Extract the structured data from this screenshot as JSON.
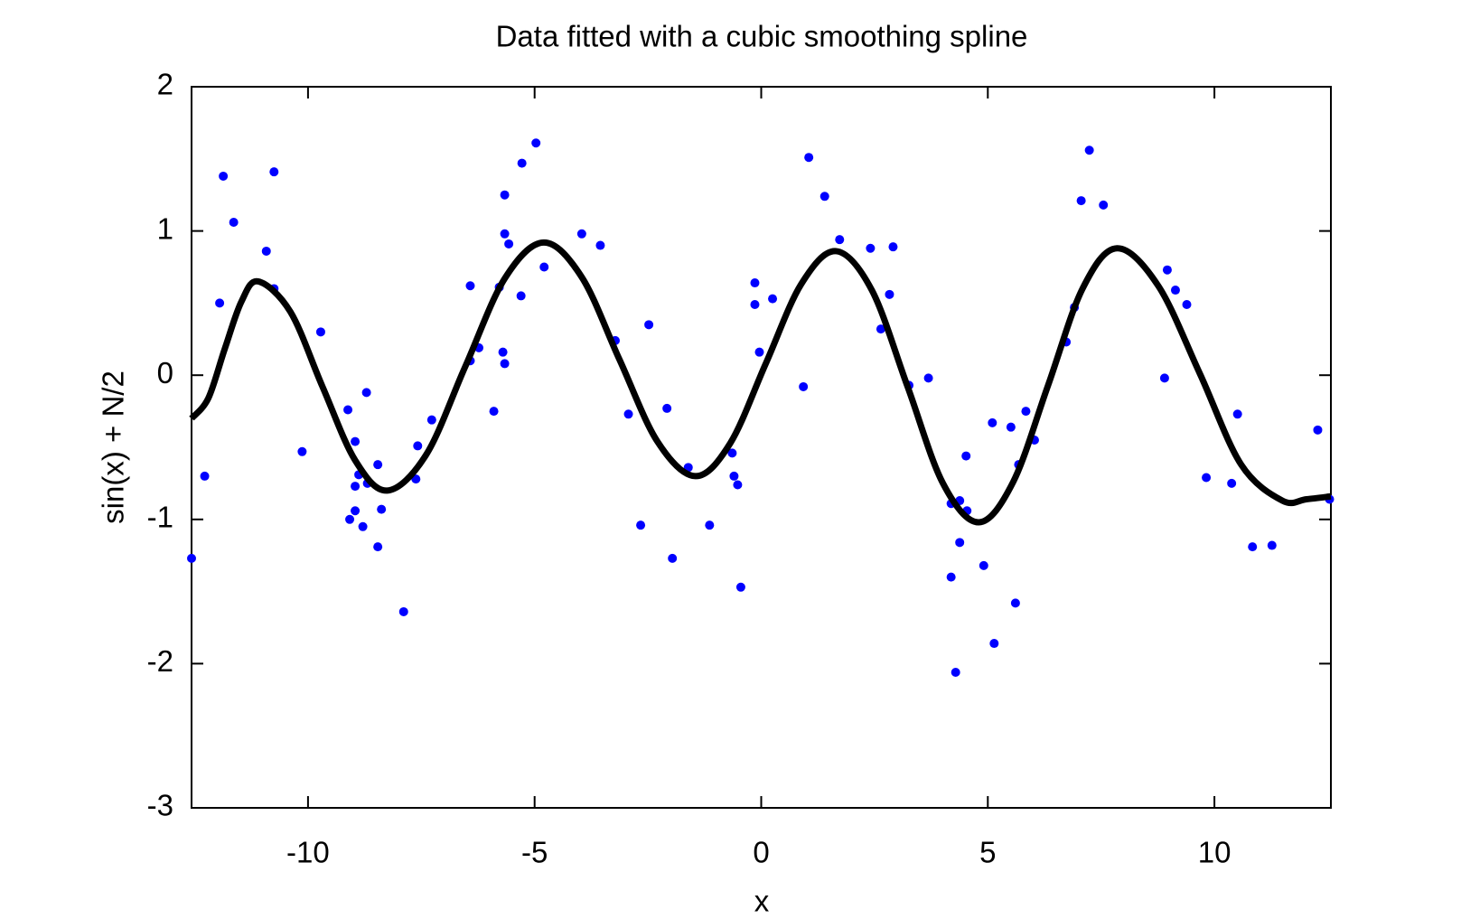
{
  "chart_data": {
    "type": "scatter",
    "title": "Data fitted with a cubic smoothing spline",
    "x_label": "x",
    "y_label": "sin(x) + N/2",
    "xlim": [
      -12.57,
      12.57
    ],
    "ylim": [
      -3,
      2
    ],
    "xticks": [
      -10,
      -5,
      0,
      5,
      10
    ],
    "yticks": [
      -3,
      -2,
      -1,
      0,
      1,
      2
    ],
    "grid": false,
    "series": [
      {
        "type": "scatter",
        "color": "#0000ff",
        "x": [
          -12.57,
          -12.28,
          -11.95,
          -11.87,
          -11.64,
          -10.92,
          -10.75,
          -10.75,
          -10.13,
          -9.72,
          -9.12,
          -9.08,
          -8.96,
          -8.96,
          -8.96,
          -8.88,
          -8.79,
          -8.71,
          -8.69,
          -8.46,
          -8.46,
          -8.38,
          -7.89,
          -7.62,
          -7.58,
          -7.27,
          -6.42,
          -6.42,
          -6.23,
          -5.9,
          -5.78,
          -5.7,
          -5.66,
          -5.66,
          -5.66,
          -5.57,
          -5.3,
          -5.28,
          -4.97,
          -4.79,
          -3.96,
          -3.55,
          -3.22,
          -2.93,
          -2.66,
          -2.48,
          -2.08,
          -1.96,
          -1.61,
          -1.14,
          -0.64,
          -0.6,
          -0.52,
          -0.45,
          -0.14,
          -0.14,
          -0.04,
          0.25,
          0.93,
          1.05,
          1.4,
          1.73,
          2.41,
          2.64,
          2.83,
          2.91,
          3.26,
          3.69,
          4.19,
          4.19,
          4.29,
          4.38,
          4.38,
          4.52,
          4.54,
          4.91,
          5.1,
          5.14,
          5.51,
          5.61,
          5.68,
          5.84,
          6.03,
          6.73,
          6.91,
          7.06,
          7.24,
          7.55,
          8.9,
          8.96,
          9.14,
          9.39,
          9.82,
          10.38,
          10.51,
          10.84,
          11.27,
          12.28,
          12.54
        ],
        "values": [
          -1.27,
          -0.7,
          0.5,
          1.38,
          1.06,
          0.86,
          0.6,
          1.41,
          -0.53,
          0.3,
          -0.24,
          -1.0,
          -0.46,
          -0.77,
          -0.94,
          -0.69,
          -1.05,
          -0.12,
          -0.75,
          -0.62,
          -1.19,
          -0.93,
          -1.64,
          -0.72,
          -0.49,
          -0.31,
          0.1,
          0.62,
          0.19,
          -0.25,
          0.61,
          0.16,
          0.98,
          1.25,
          0.08,
          0.91,
          0.55,
          1.47,
          1.61,
          0.75,
          0.98,
          0.9,
          0.24,
          -0.27,
          -1.04,
          0.35,
          -0.23,
          -1.27,
          -0.64,
          -1.04,
          -0.54,
          -0.7,
          -0.76,
          -1.47,
          0.64,
          0.49,
          0.16,
          0.53,
          -0.08,
          1.51,
          1.24,
          0.94,
          0.88,
          0.32,
          0.56,
          0.89,
          -0.07,
          -0.02,
          -0.89,
          -1.4,
          -2.06,
          -0.87,
          -1.16,
          -0.56,
          -0.94,
          -1.32,
          -0.33,
          -1.86,
          -0.36,
          -1.58,
          -0.62,
          -0.25,
          -0.45,
          0.23,
          0.47,
          1.21,
          1.56,
          1.18,
          -0.02,
          0.73,
          0.59,
          0.49,
          -0.71,
          -0.75,
          -0.27,
          -1.19,
          -1.18,
          -0.38,
          -0.86
        ]
      },
      {
        "type": "line",
        "color": "#000000",
        "x": [
          -12.57,
          -12.2,
          -11.84,
          -11.47,
          -11.1,
          -10.39,
          -9.68,
          -8.96,
          -8.25,
          -7.39,
          -6.53,
          -5.66,
          -4.8,
          -3.96,
          -3.13,
          -2.29,
          -1.45,
          -0.68,
          0.1,
          0.88,
          1.65,
          2.44,
          3.23,
          4.01,
          4.8,
          5.56,
          6.33,
          7.09,
          7.85,
          8.76,
          9.68,
          10.59,
          11.5,
          12.03,
          12.57
        ],
        "values": [
          -0.3,
          -0.16,
          0.18,
          0.51,
          0.65,
          0.44,
          -0.08,
          -0.59,
          -0.8,
          -0.55,
          0.06,
          0.67,
          0.92,
          0.68,
          0.11,
          -0.46,
          -0.7,
          -0.47,
          0.08,
          0.63,
          0.86,
          0.59,
          -0.08,
          -0.75,
          -1.02,
          -0.74,
          -0.07,
          0.6,
          0.88,
          0.62,
          0.01,
          -0.62,
          -0.87,
          -0.86,
          -0.84
        ]
      }
    ]
  }
}
